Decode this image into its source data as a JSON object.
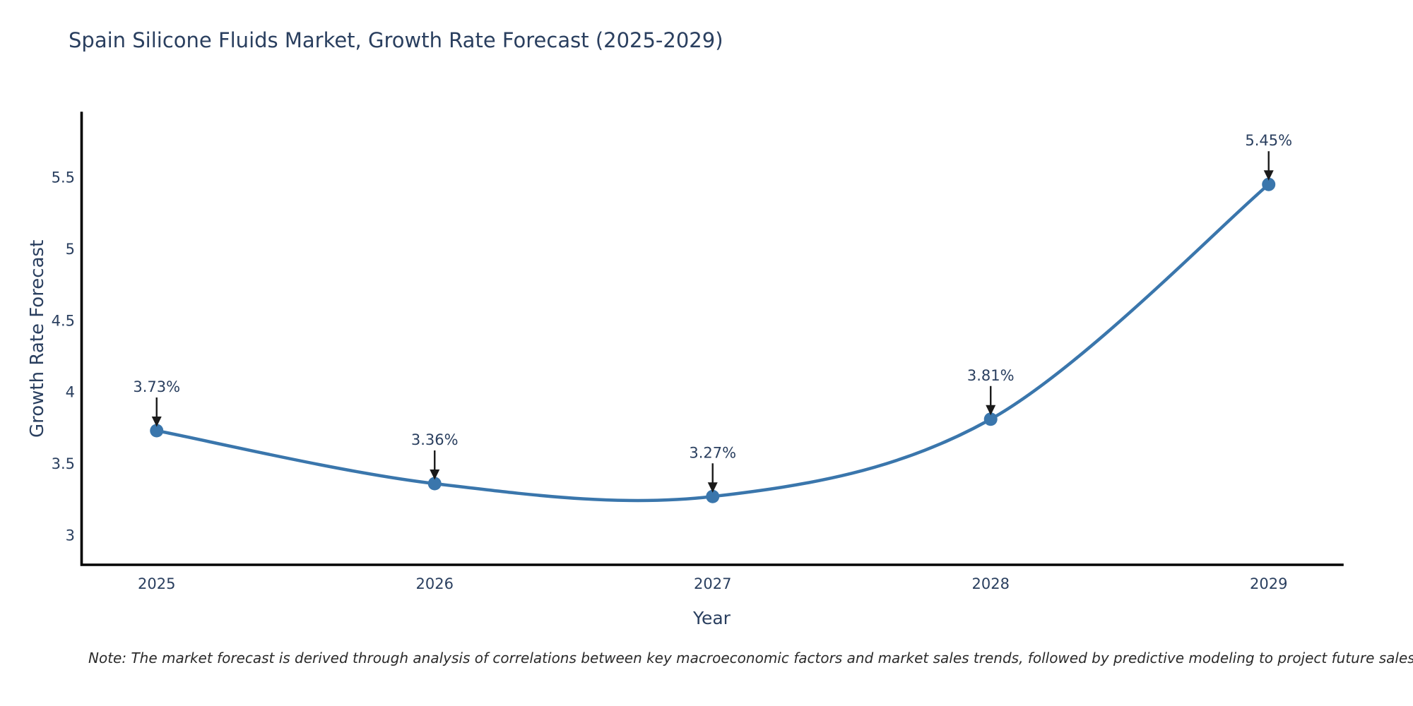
{
  "chart_data": {
    "type": "line",
    "title": "Spain Silicone Fluids Market, Growth Rate Forecast (2025-2029)",
    "xlabel": "Year",
    "ylabel": "Growth Rate Forecast",
    "x": [
      2025,
      2026,
      2027,
      2028,
      2029
    ],
    "series": [
      {
        "name": "Growth Rate Forecast",
        "values": [
          3.73,
          3.36,
          3.27,
          3.81,
          5.45
        ],
        "point_labels": [
          "3.73%",
          "3.36%",
          "3.27%",
          "3.81%",
          "5.45%"
        ]
      }
    ],
    "yticks": [
      3,
      3.5,
      4,
      4.5,
      5,
      5.5
    ],
    "xticks": [
      2025,
      2026,
      2027,
      2028,
      2029
    ],
    "xlim": [
      2024.73,
      2029.265
    ],
    "ylim": [
      2.793,
      5.949
    ],
    "grid": false,
    "legend_position": "none",
    "line_shape": "spline",
    "colors": {
      "line": "#3a76ac",
      "marker": "#3a76ac",
      "arrow": "#1a1a1a",
      "axis": "#000000",
      "text": "#2a3f5f"
    }
  },
  "note": {
    "text": "Note: The market forecast is derived through analysis of correlations between key macroeconomic factors and market sales trends, followed by predictive modeling to project future sales"
  }
}
